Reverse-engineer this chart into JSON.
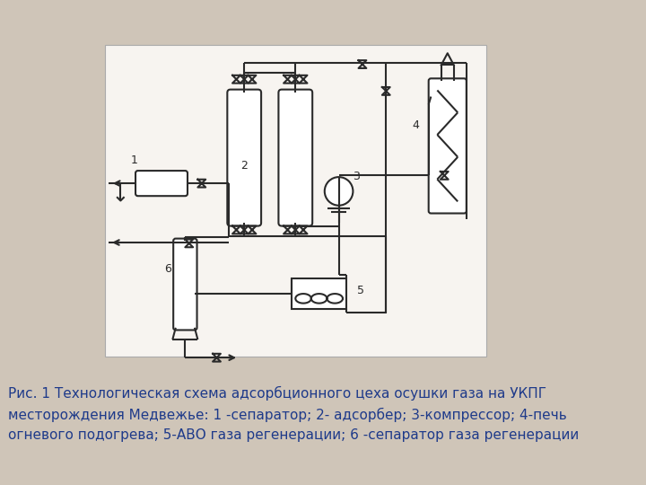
{
  "background_color": "#cfc5b8",
  "diagram_bg": "#f5f2ee",
  "line_color": "#2a2a2a",
  "line_width": 1.5,
  "caption_color": "#1e3a8a",
  "caption_fontsize": 11.0,
  "caption_text": "Рис. 1 Технологическая схема адсорбционного цеха осушки газа на УКПГ\nместорождения Медвежье: 1 -сепаратор; 2- адсорбер; 3-компрессор; 4-печь\nогневого подогрева; 5-АВО газа регенерации; 6 -сепаратор газа регенерации"
}
